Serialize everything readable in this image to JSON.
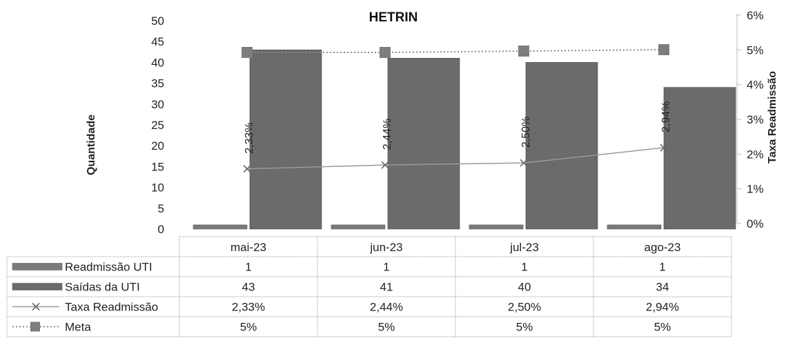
{
  "chart_data": {
    "type": "bar",
    "title": "HETRIN",
    "ylabel": "Quantidade",
    "y2label": "Taxa Readmissão",
    "ylim": [
      0,
      50
    ],
    "y2lim": [
      0,
      6
    ],
    "yticks": [
      "0",
      "5",
      "10",
      "15",
      "20",
      "25",
      "30",
      "35",
      "40",
      "45",
      "50"
    ],
    "y2ticks": [
      "0%",
      "1%",
      "2%",
      "3%",
      "4%",
      "5%",
      "6%"
    ],
    "categories": [
      "mai-23",
      "jun-23",
      "jul-23",
      "ago-23"
    ],
    "series": [
      {
        "name": "Readmissão UTI",
        "kind": "bar",
        "axis": "left",
        "color": "#7a7a7a",
        "values": [
          1,
          1,
          1,
          1
        ],
        "labels": [
          "1",
          "1",
          "1",
          "1"
        ]
      },
      {
        "name": "Saídas da UTI",
        "kind": "bar",
        "axis": "left",
        "color": "#6b6b6b",
        "values": [
          43,
          41,
          40,
          34
        ],
        "labels": [
          "43",
          "41",
          "40",
          "34"
        ]
      },
      {
        "name": "Taxa Readmissão",
        "kind": "line",
        "axis": "right",
        "color": "#9a9a9a",
        "values": [
          2.33,
          2.44,
          2.5,
          2.94
        ],
        "labels": [
          "2,33%",
          "2,44%",
          "2,50%",
          "2,94%"
        ]
      },
      {
        "name": "Meta",
        "kind": "line",
        "axis": "right",
        "color": "#8a8a8a",
        "values": [
          5,
          5,
          5,
          5
        ],
        "labels": [
          "5%",
          "5%",
          "5%",
          "5%"
        ]
      }
    ]
  }
}
